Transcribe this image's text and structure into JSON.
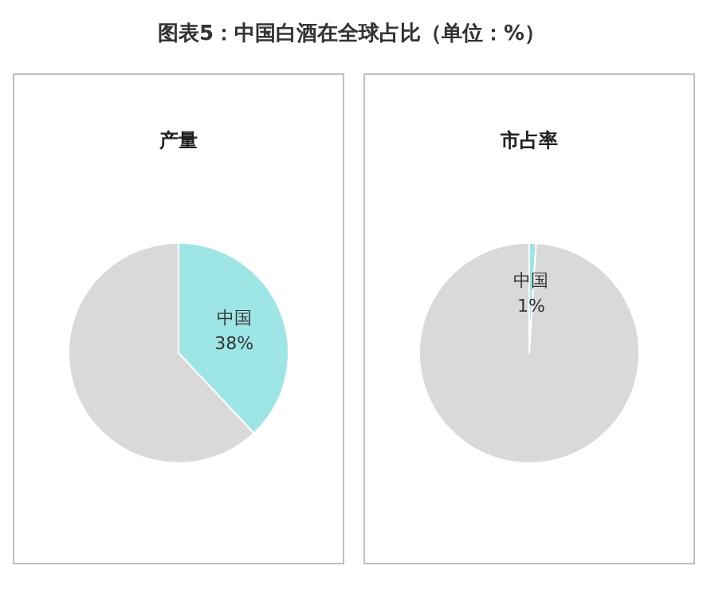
{
  "chart_data": [
    {
      "type": "pie",
      "title": "图表5：中国白酒在全球占比（单位：%）",
      "subtitle": "产量",
      "categories": [
        "中国",
        null
      ],
      "values": [
        38,
        62
      ],
      "colors": [
        "#9ee6e6",
        "#d9d9d9"
      ],
      "value_labels": [
        "38%",
        null
      ]
    },
    {
      "type": "pie",
      "subtitle": "市占率",
      "categories": [
        "中国",
        null
      ],
      "values": [
        1,
        99
      ],
      "colors": [
        "#9ee6e6",
        "#d9d9d9"
      ],
      "value_labels": [
        "1%",
        null
      ]
    }
  ]
}
